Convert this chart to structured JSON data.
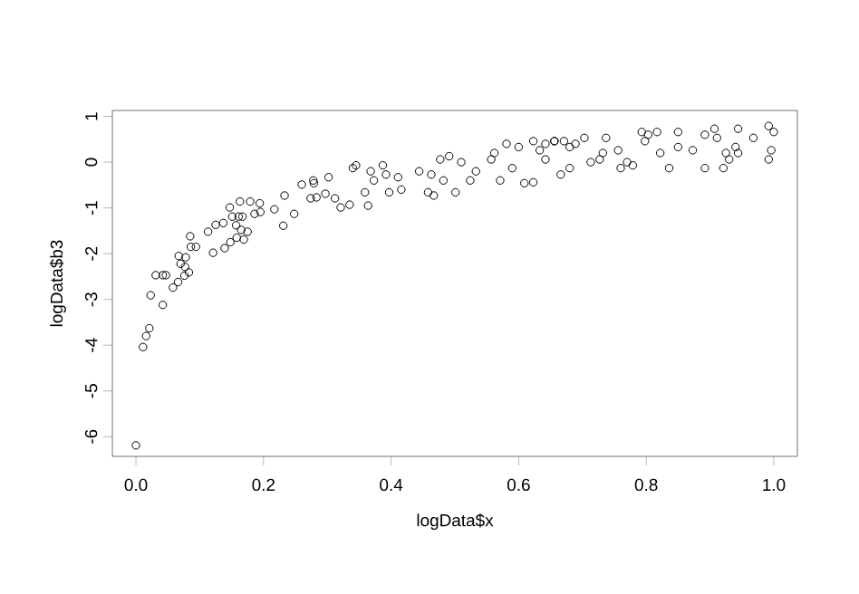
{
  "chart_data": {
    "type": "scatter",
    "xlabel": "logData$x",
    "ylabel": "logData$b3",
    "color": "#000000",
    "marker": "circle",
    "xlim": [
      -0.037,
      1.037
    ],
    "ylim": [
      -6.43,
      1.13
    ],
    "xticks": [
      {
        "value": 0,
        "label": "0.0"
      },
      {
        "value": 0.2,
        "label": "0.2"
      },
      {
        "value": 0.4,
        "label": "0.4"
      },
      {
        "value": 0.6,
        "label": "0.6"
      },
      {
        "value": 0.8,
        "label": "0.8"
      },
      {
        "value": 1,
        "label": "1.0"
      }
    ],
    "yticks": [
      -6,
      -5,
      -4,
      -3,
      -2,
      -1,
      0,
      1
    ],
    "x": [
      0.0,
      0.011,
      0.016,
      0.021,
      0.023,
      0.042,
      0.031,
      0.042,
      0.047,
      0.058,
      0.066,
      0.076,
      0.083,
      0.067,
      0.078,
      0.086,
      0.094,
      0.085,
      0.07,
      0.077,
      0.121,
      0.139,
      0.148,
      0.158,
      0.169,
      0.165,
      0.175,
      0.113,
      0.125,
      0.137,
      0.151,
      0.163,
      0.179,
      0.194,
      0.186,
      0.195,
      0.147,
      0.161,
      0.157,
      0.167,
      0.217,
      0.233,
      0.231,
      0.248,
      0.26,
      0.274,
      0.279,
      0.278,
      0.283,
      0.297,
      0.302,
      0.312,
      0.321,
      0.335,
      0.34,
      0.345,
      0.359,
      0.364,
      0.368,
      0.373,
      0.387,
      0.392,
      0.397,
      0.411,
      0.416,
      0.444,
      0.458,
      0.463,
      0.467,
      0.477,
      0.482,
      0.491,
      0.501,
      0.51,
      0.524,
      0.533,
      0.557,
      0.562,
      0.571,
      0.581,
      0.59,
      0.6,
      0.609,
      0.623,
      0.623,
      0.633,
      0.642,
      0.656,
      0.642,
      0.656,
      0.671,
      0.68,
      0.689,
      0.703,
      0.666,
      0.68,
      0.713,
      0.727,
      0.737,
      0.732,
      0.756,
      0.76,
      0.77,
      0.779,
      0.793,
      0.803,
      0.798,
      0.817,
      0.822,
      0.836,
      0.85,
      0.85,
      0.873,
      0.892,
      0.892,
      0.907,
      0.911,
      0.921,
      0.925,
      0.93,
      0.94,
      0.944,
      0.944,
      0.968,
      0.992,
      0.996,
      0.992,
      1.0
    ],
    "values": [
      -6.19,
      -4.04,
      -3.8,
      -3.63,
      -2.91,
      -3.12,
      -2.47,
      -2.47,
      -2.47,
      -2.74,
      -2.62,
      -2.48,
      -2.41,
      -2.05,
      -2.08,
      -1.85,
      -1.85,
      -1.62,
      -2.22,
      -2.29,
      -1.98,
      -1.88,
      -1.75,
      -1.65,
      -1.69,
      -1.48,
      -1.52,
      -1.52,
      -1.37,
      -1.33,
      -1.19,
      -0.86,
      -0.86,
      -0.9,
      -1.13,
      -1.09,
      -0.99,
      -1.19,
      -1.38,
      -1.19,
      -1.03,
      -0.73,
      -1.39,
      -1.13,
      -0.49,
      -0.79,
      -0.46,
      -0.4,
      -0.77,
      -0.69,
      -0.33,
      -0.79,
      -0.99,
      -0.93,
      -0.13,
      -0.07,
      -0.66,
      -0.95,
      -0.2,
      -0.4,
      -0.07,
      -0.27,
      -0.66,
      -0.33,
      -0.6,
      -0.2,
      -0.66,
      -0.27,
      -0.73,
      0.06,
      -0.4,
      0.13,
      -0.66,
      0.0,
      -0.4,
      -0.2,
      0.06,
      0.2,
      -0.4,
      0.4,
      -0.13,
      0.33,
      -0.46,
      -0.44,
      0.46,
      0.26,
      0.06,
      0.46,
      0.4,
      0.46,
      0.46,
      0.33,
      0.4,
      0.53,
      -0.27,
      -0.13,
      0.0,
      0.06,
      0.53,
      0.2,
      0.26,
      -0.13,
      0.0,
      -0.07,
      0.66,
      0.6,
      0.46,
      0.66,
      0.2,
      -0.13,
      0.33,
      0.66,
      0.26,
      -0.13,
      0.6,
      0.73,
      0.53,
      -0.13,
      0.2,
      0.06,
      0.33,
      0.73,
      0.2,
      0.53,
      0.79,
      0.26,
      0.06,
      0.66
    ]
  }
}
